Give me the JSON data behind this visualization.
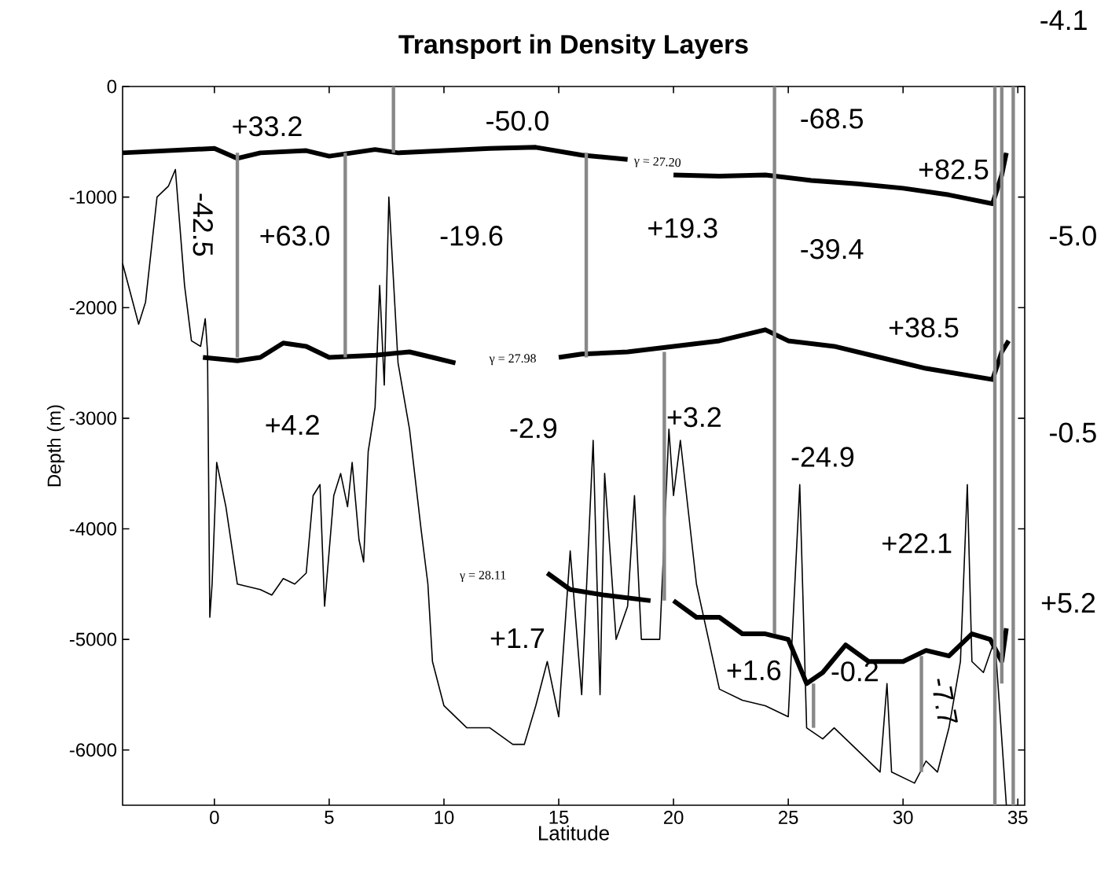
{
  "chart_data": {
    "type": "line",
    "title": "Transport in Density Layers",
    "xlabel": "Latitude",
    "ylabel": "Depth (m)",
    "xlim": [
      -4,
      35.3
    ],
    "ylim": [
      -6500,
      0
    ],
    "xticks": [
      0,
      5,
      10,
      15,
      20,
      25,
      30,
      35
    ],
    "yticks": [
      0,
      -1000,
      -2000,
      -3000,
      -4000,
      -5000,
      -6000
    ],
    "marker": "none",
    "line_style": "solid",
    "series": [
      {
        "color": "#000000",
        "x": [
          -4,
          -3.3,
          -3,
          -2.5,
          -2,
          -1.7,
          -1.3,
          -1,
          -0.6,
          -0.4,
          -0.3,
          -0.2,
          -0.1,
          0.1,
          0.5,
          1,
          2,
          2.5,
          3,
          3.5,
          4,
          4.3,
          4.6,
          4.8,
          5.2,
          5.5,
          5.8,
          6,
          6.3,
          6.5,
          6.7,
          7,
          7.2,
          7.4,
          7.6,
          8,
          8.5,
          9,
          9.3,
          9.5,
          10,
          11,
          12,
          13,
          13.5,
          14,
          14.5,
          15,
          15.5,
          16,
          16.5,
          16.8,
          17,
          17.5,
          18,
          18.3,
          18.6,
          19,
          19.4,
          19.8,
          20,
          20.3,
          21,
          22,
          23,
          24,
          25,
          25.5,
          25.8,
          26.5,
          27,
          28,
          29,
          29.3,
          29.5,
          30.5,
          31,
          31.5,
          32,
          32.5,
          32.8,
          33,
          33.5,
          34,
          34.5
        ],
        "values": [
          -1600,
          -2150,
          -1950,
          -1000,
          -900,
          -750,
          -1800,
          -2300,
          -2350,
          -2100,
          -2400,
          -4800,
          -4500,
          -3400,
          -3800,
          -4500,
          -4550,
          -4600,
          -4450,
          -4500,
          -4400,
          -3700,
          -3600,
          -4700,
          -3700,
          -3500,
          -3800,
          -3400,
          -4100,
          -4300,
          -3300,
          -2900,
          -1800,
          -2700,
          -1000,
          -2500,
          -3100,
          -4000,
          -4500,
          -5200,
          -5600,
          -5800,
          -5800,
          -5950,
          -5950,
          -5600,
          -5200,
          -5700,
          -4200,
          -5500,
          -3200,
          -5500,
          -3500,
          -5000,
          -4700,
          -3700,
          -5000,
          -5000,
          -5000,
          -3100,
          -3700,
          -3200,
          -4500,
          -5450,
          -5550,
          -5600,
          -5700,
          -3600,
          -5800,
          -5900,
          -5800,
          -6000,
          -6200,
          -5400,
          -6200,
          -6300,
          -6100,
          -6200,
          -5800,
          -5200,
          -3600,
          -5200,
          -5300,
          -5000,
          -6500
        ]
      },
      {
        "color": "#000000",
        "x": [
          -4,
          -2,
          0,
          1,
          2,
          4,
          5,
          7,
          8,
          10,
          12,
          14,
          16,
          18,
          18.7,
          19.9,
          20,
          22,
          24,
          26,
          28,
          30,
          32,
          33.9,
          34.3,
          34.5
        ],
        "values": [
          -600,
          -580,
          -560,
          -650,
          -600,
          -580,
          -630,
          -570,
          -600,
          -580,
          -560,
          -550,
          -620,
          -660,
          null,
          null,
          -800,
          -810,
          -800,
          -850,
          -880,
          -920,
          -980,
          -1060,
          -800,
          -600
        ]
      },
      {
        "color": "#000000",
        "x": [
          -0.5,
          1,
          2,
          3,
          4,
          5,
          7,
          8.5,
          9.5,
          10.5,
          11,
          15,
          16,
          18,
          20,
          22,
          24,
          25,
          27,
          29,
          31,
          33.9,
          34.3,
          34.6
        ],
        "values": [
          -2450,
          -2480,
          -2450,
          -2320,
          -2350,
          -2450,
          -2430,
          -2400,
          -2450,
          -2500,
          null,
          -2450,
          -2420,
          -2400,
          -2350,
          -2300,
          -2200,
          -2300,
          -2350,
          -2450,
          -2550,
          -2650,
          -2400,
          -2300
        ]
      },
      {
        "color": "#000000",
        "x": [
          14.5,
          15.5,
          17,
          19,
          19.5,
          20,
          21,
          22,
          23,
          24,
          25,
          25.8,
          26.5,
          27.5,
          28.5,
          30,
          31,
          32,
          33,
          33.8,
          34.3,
          34.5
        ],
        "values": [
          -4400,
          -4550,
          -4600,
          -4650,
          null,
          -4650,
          -4800,
          -4800,
          -4950,
          -4950,
          -5000,
          -5400,
          -5300,
          -5050,
          -5200,
          -5200,
          -5100,
          -5150,
          -4950,
          -5000,
          -5200,
          -4900
        ]
      },
      {
        "color": "#888888",
        "x": [
          1,
          1
        ],
        "values": [
          -600,
          -2450
        ]
      },
      {
        "color": "#888888",
        "x": [
          5.7,
          5.7
        ],
        "values": [
          -600,
          -2450
        ]
      },
      {
        "color": "#888888",
        "x": [
          7.8,
          7.8
        ],
        "values": [
          0,
          -600
        ]
      },
      {
        "color": "#888888",
        "x": [
          16.2,
          16.2
        ],
        "values": [
          -600,
          -2450
        ]
      },
      {
        "color": "#888888",
        "x": [
          19.6,
          19.6
        ],
        "values": [
          -2400,
          -4650
        ]
      },
      {
        "color": "#888888",
        "x": [
          24.4,
          24.4
        ],
        "values": [
          0,
          -4950
        ]
      },
      {
        "color": "#888888",
        "x": [
          26.1,
          26.1
        ],
        "values": [
          -5400,
          -5800
        ]
      },
      {
        "color": "#888888",
        "x": [
          30.8,
          30.8
        ],
        "values": [
          -5150,
          -6200
        ]
      },
      {
        "color": "#888888",
        "x": [
          34,
          34
        ],
        "values": [
          0,
          -6500
        ]
      },
      {
        "color": "#888888",
        "x": [
          34.3,
          34.3
        ],
        "values": [
          0,
          -5400
        ]
      },
      {
        "color": "#888888",
        "x": [
          34.8,
          34.8
        ],
        "values": [
          0,
          -6500
        ]
      }
    ],
    "annotations": [
      "+33.2",
      "-50.0",
      "-68.5",
      "-4.1",
      "+82.5",
      "-42.5",
      "+63.0",
      "-19.6",
      "+19.3",
      "-39.4",
      "-5.0",
      "+38.5",
      "+4.2",
      "-2.9",
      "+3.2",
      "-24.9",
      "-0.5",
      "+22.1",
      "+1.7",
      "+5.2",
      "+1.6",
      "-0.2",
      "-7.7",
      "γ = 27.20",
      "γ = 27.98",
      "γ = 28.11"
    ]
  }
}
